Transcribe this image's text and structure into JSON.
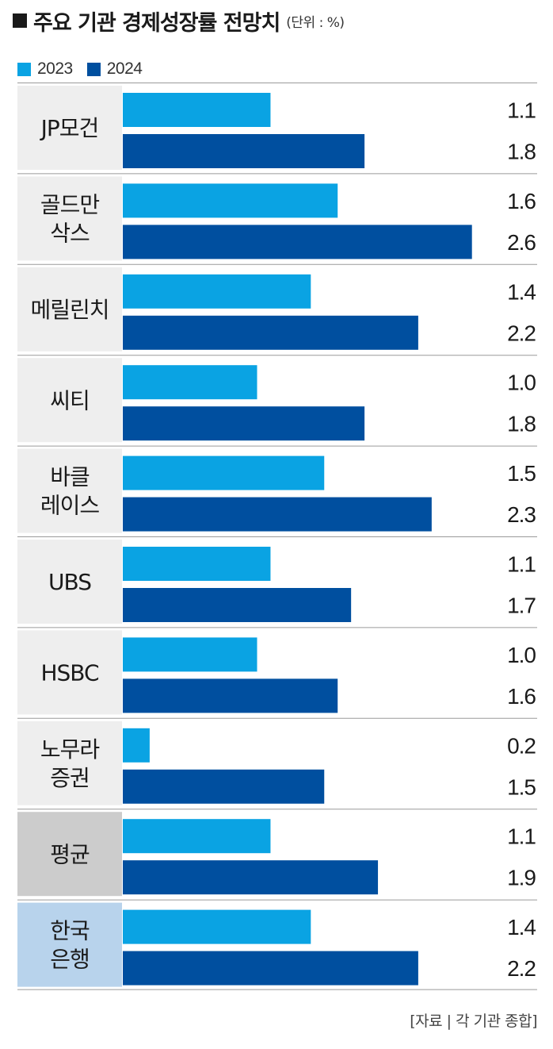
{
  "title": "주요 기관 경제성장률 전망치",
  "unit": "(단위 : %)",
  "source": "[자료 | 각 기관 종합]",
  "colors": {
    "s2023": "#0aa3e3",
    "s2024": "#004f9f",
    "label_bg_default": "#eeeeee",
    "label_bg_average": "#cccccc",
    "label_bg_bok": "#b8d3ec"
  },
  "chart_data": {
    "type": "bar",
    "orientation": "horizontal",
    "title": "주요 기관 경제성장률 전망치",
    "unit": "%",
    "categories": [
      "JP모건",
      "골드만\n삭스",
      "메릴린치",
      "씨티",
      "바클\n레이스",
      "UBS",
      "HSBC",
      "노무라\n증권",
      "평균",
      "한국\n은행"
    ],
    "category_styles": [
      "default",
      "default",
      "default",
      "default",
      "default",
      "default",
      "default",
      "default",
      "average",
      "bok"
    ],
    "series": [
      {
        "name": "2023",
        "values": [
          1.1,
          1.6,
          1.4,
          1.0,
          1.5,
          1.1,
          1.0,
          0.2,
          1.1,
          1.4
        ]
      },
      {
        "name": "2024",
        "values": [
          1.8,
          2.6,
          2.2,
          1.8,
          2.3,
          1.7,
          1.6,
          1.5,
          1.9,
          2.2
        ]
      }
    ],
    "labels": [
      [
        "1.1",
        "1.8"
      ],
      [
        "1.6",
        "2.6"
      ],
      [
        "1.4",
        "2.2"
      ],
      [
        "1.0",
        "1.8"
      ],
      [
        "1.5",
        "2.3"
      ],
      [
        "1.1",
        "1.7"
      ],
      [
        "1.0",
        "1.6"
      ],
      [
        "0.2",
        "1.5"
      ],
      [
        "1.1",
        "1.9"
      ],
      [
        "1.4",
        "2.2"
      ]
    ],
    "legend_position": "top-left",
    "grid": false
  }
}
